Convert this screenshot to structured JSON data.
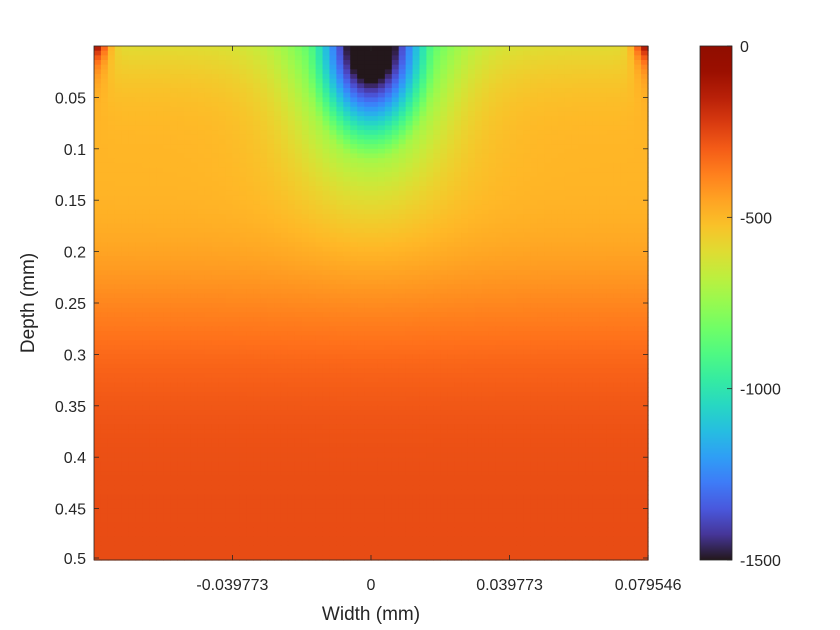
{
  "chart_data": {
    "type": "heatmap",
    "title": "",
    "xlabel": "Width (mm)",
    "ylabel": "Depth (mm)",
    "xlim": [
      -0.0795,
      0.0795
    ],
    "ylim": [
      0,
      0.5
    ],
    "y_reversed": true,
    "x_ticks": [
      -0.039773,
      0,
      0.039773,
      0.079546
    ],
    "x_tick_labels": [
      "-0.039773",
      "0",
      "0.039773",
      "0.079546"
    ],
    "y_ticks": [
      0.05,
      0.1,
      0.15,
      0.2,
      0.25,
      0.3,
      0.35,
      0.4,
      0.45,
      0.5
    ],
    "y_tick_labels": [
      "0.05",
      "0.1",
      "0.15",
      "0.2",
      "0.25",
      "0.3",
      "0.35",
      "0.4",
      "0.45",
      "0.5"
    ],
    "colormap": "turbo",
    "colorbar": {
      "range": [
        -1500,
        0
      ],
      "ticks": [
        0,
        -500,
        -1000,
        -1500
      ],
      "tick_labels": [
        "0",
        "-500",
        "-1000",
        "-1500"
      ]
    },
    "field_description": "Field is minimum (about -1500) at the top center (width 0, depth 0), rising radially to about -600 near depth 0.15, about -450 near depth 0.25, and about -300 to -250 near depth 0.5; corners at the top edges near 0.",
    "sample_profile_center_column": {
      "depth": [
        0.0,
        0.025,
        0.05,
        0.075,
        0.1,
        0.125,
        0.15,
        0.2,
        0.25,
        0.3,
        0.35,
        0.4,
        0.45,
        0.5
      ],
      "value": [
        -1500,
        -1400,
        -1250,
        -1080,
        -920,
        -780,
        -650,
        -520,
        -450,
        -400,
        -360,
        -320,
        -290,
        -260
      ]
    },
    "grid": false,
    "legend": "none"
  }
}
